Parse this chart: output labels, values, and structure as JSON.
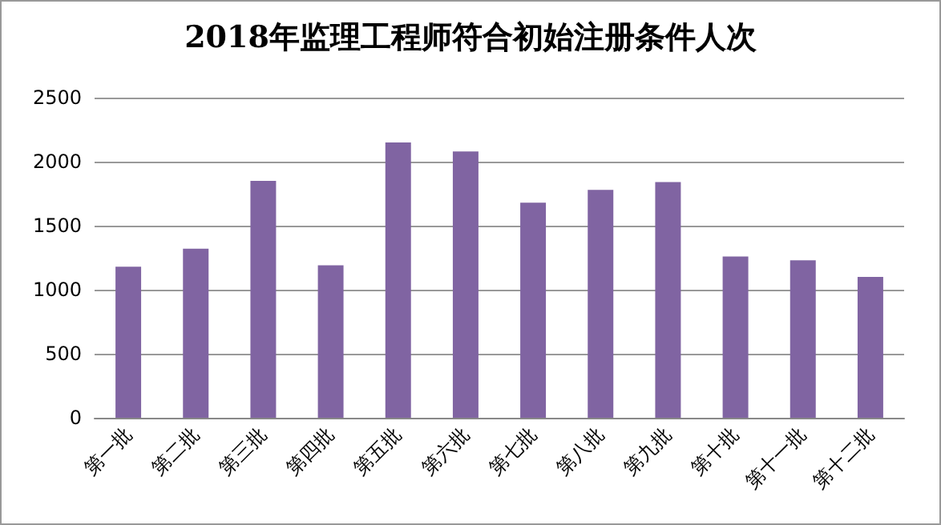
{
  "chart_data": {
    "type": "bar",
    "title": "2018年监理工程师符合初始注册条件人次",
    "categories": [
      "第一批",
      "第二批",
      "第三批",
      "第四批",
      "第五批",
      "第六批",
      "第七批",
      "第八批",
      "第九批",
      "第十批",
      "第十一批",
      "第十二批"
    ],
    "values": [
      1180,
      1320,
      1850,
      1190,
      2150,
      2080,
      1680,
      1780,
      1840,
      1260,
      1230,
      1100
    ],
    "color": "#8064a2",
    "ylim": [
      0,
      2500
    ],
    "yticks": [
      0,
      500,
      1000,
      1500,
      2000,
      2500
    ],
    "grid": "y"
  }
}
